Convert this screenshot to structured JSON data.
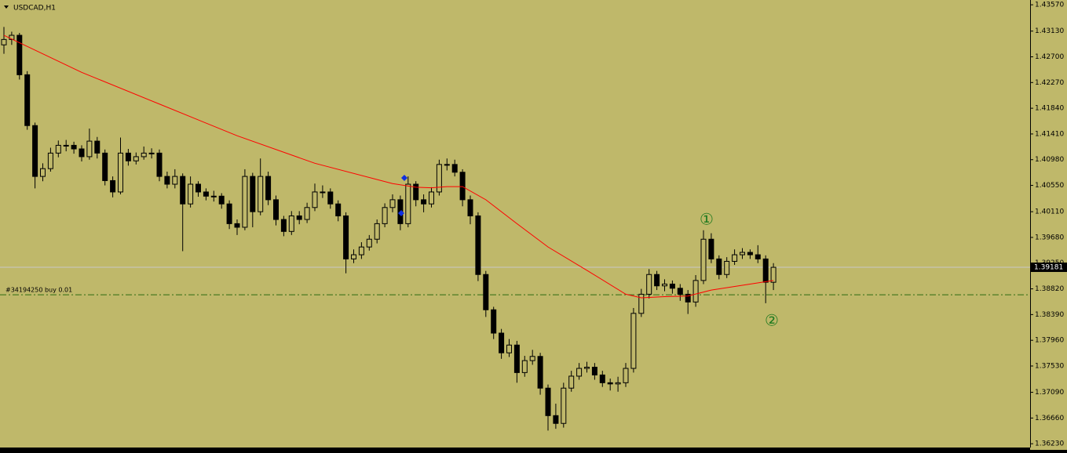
{
  "chart_data": {
    "type": "candlestick",
    "title": "USDCAD,H1",
    "ylim": [
      1.3618,
      1.4365
    ],
    "yticks": [
      {
        "value": 1.4357,
        "label": "1.43570"
      },
      {
        "value": 1.4313,
        "label": "1.43130"
      },
      {
        "value": 1.427,
        "label": "1.42700"
      },
      {
        "value": 1.4227,
        "label": "1.42270"
      },
      {
        "value": 1.4184,
        "label": "1.41840"
      },
      {
        "value": 1.4141,
        "label": "1.41410"
      },
      {
        "value": 1.4098,
        "label": "1.40980"
      },
      {
        "value": 1.4055,
        "label": "1.40550"
      },
      {
        "value": 1.4011,
        "label": "1.40110"
      },
      {
        "value": 1.3968,
        "label": "1.39680"
      },
      {
        "value": 1.3925,
        "label": "1.39250"
      },
      {
        "value": 1.3882,
        "label": "1.38820"
      },
      {
        "value": 1.3839,
        "label": "1.38390"
      },
      {
        "value": 1.3796,
        "label": "1.37960"
      },
      {
        "value": 1.3753,
        "label": "1.37530"
      },
      {
        "value": 1.3709,
        "label": "1.37090"
      },
      {
        "value": 1.3666,
        "label": "1.36660"
      },
      {
        "value": 1.3623,
        "label": "1.36230"
      }
    ],
    "open": [
      1.429,
      1.4299,
      1.4306,
      1.424,
      1.4155,
      1.407,
      1.4083,
      1.4109,
      1.4122,
      1.4122,
      1.4116,
      1.4103,
      1.4129,
      1.4109,
      1.4063,
      1.4044,
      1.4109,
      1.4096,
      1.4103,
      1.4109,
      1.4109,
      1.407,
      1.4057,
      1.407,
      1.4024,
      1.4057,
      1.4044,
      1.4037,
      1.4037,
      1.4024,
      1.3991,
      1.3985,
      1.407,
      1.4011,
      1.407,
      1.4031,
      1.3998,
      1.3978,
      1.4004,
      1.3998,
      1.4018,
      1.4044,
      1.4044,
      1.4024,
      1.4004,
      1.3932,
      1.3939,
      1.3952,
      1.3965,
      1.3991,
      1.4018,
      1.4031,
      1.3991,
      1.4057,
      1.4031,
      1.4024,
      1.4044,
      1.409,
      1.409,
      1.4077,
      1.4031,
      1.4004,
      1.3906,
      1.3847,
      1.3808,
      1.3775,
      1.3788,
      1.3742,
      1.3762,
      1.3769,
      1.3716,
      1.367,
      1.3657,
      1.3716,
      1.3736,
      1.3749,
      1.3751,
      1.3738,
      1.3725,
      1.3723,
      1.3725,
      1.3749,
      1.3841,
      1.3873,
      1.3906,
      1.3887,
      1.389,
      1.3883,
      1.3873,
      1.386,
      1.3896,
      1.3965,
      1.3932,
      1.3906,
      1.3928,
      1.3939,
      1.3943,
      1.3939,
      1.3932,
      1.3893
    ],
    "high": [
      1.432,
      1.4312,
      1.431,
      1.4246,
      1.416,
      1.4092,
      1.4118,
      1.413,
      1.4131,
      1.4128,
      1.4122,
      1.415,
      1.4136,
      1.4115,
      1.407,
      1.4135,
      1.4116,
      1.411,
      1.412,
      1.4117,
      1.4115,
      1.4078,
      1.4082,
      1.4075,
      1.407,
      1.4062,
      1.405,
      1.4046,
      1.4042,
      1.403,
      1.3998,
      1.4082,
      1.4076,
      1.41,
      1.4078,
      1.4038,
      1.4004,
      1.4012,
      1.4012,
      1.4026,
      1.4058,
      1.4055,
      1.405,
      1.403,
      1.401,
      1.3948,
      1.396,
      1.3972,
      1.3998,
      1.4025,
      1.404,
      1.4038,
      1.407,
      1.4062,
      1.404,
      1.4052,
      1.4098,
      1.41,
      1.4098,
      1.4082,
      1.4038,
      1.401,
      1.3912,
      1.3852,
      1.3815,
      1.3798,
      1.3795,
      1.377,
      1.378,
      1.3775,
      1.3722,
      1.369,
      1.3725,
      1.3745,
      1.3758,
      1.376,
      1.3758,
      1.3745,
      1.3732,
      1.3735,
      1.3758,
      1.385,
      1.3882,
      1.3915,
      1.3912,
      1.3898,
      1.3896,
      1.389,
      1.388,
      1.3905,
      1.398,
      1.3975,
      1.3938,
      1.3935,
      1.3948,
      1.395,
      1.3948,
      1.3955,
      1.3938,
      1.3925
    ],
    "low": [
      1.4275,
      1.429,
      1.4232,
      1.4148,
      1.405,
      1.4062,
      1.4078,
      1.4102,
      1.4112,
      1.4108,
      1.4095,
      1.4098,
      1.41,
      1.4055,
      1.4035,
      1.404,
      1.4088,
      1.409,
      1.4098,
      1.41,
      1.4062,
      1.405,
      1.405,
      1.3945,
      1.4018,
      1.4036,
      1.403,
      1.4028,
      1.4016,
      1.3982,
      1.3972,
      1.398,
      1.3985,
      1.4005,
      1.4022,
      1.3988,
      1.397,
      1.3972,
      1.399,
      1.3992,
      1.4012,
      1.4034,
      1.4016,
      1.3995,
      1.3908,
      1.3925,
      1.3932,
      1.3946,
      1.3958,
      1.3985,
      1.401,
      1.398,
      1.3985,
      1.402,
      1.401,
      1.4018,
      1.4038,
      1.408,
      1.407,
      1.402,
      1.399,
      1.3895,
      1.3835,
      1.3798,
      1.3765,
      1.3768,
      1.3725,
      1.3735,
      1.3755,
      1.3705,
      1.3645,
      1.3648,
      1.365,
      1.371,
      1.373,
      1.3742,
      1.373,
      1.3718,
      1.3712,
      1.371,
      1.3718,
      1.3742,
      1.3835,
      1.3866,
      1.388,
      1.3878,
      1.3874,
      1.3862,
      1.384,
      1.3852,
      1.389,
      1.3925,
      1.3898,
      1.39,
      1.3922,
      1.3932,
      1.3932,
      1.3925,
      1.3858,
      1.388
    ],
    "close": [
      1.4299,
      1.4306,
      1.424,
      1.4155,
      1.407,
      1.4083,
      1.4109,
      1.4122,
      1.4122,
      1.4116,
      1.4103,
      1.4129,
      1.4109,
      1.4063,
      1.4044,
      1.4109,
      1.4096,
      1.4103,
      1.4109,
      1.4109,
      1.407,
      1.4057,
      1.407,
      1.4024,
      1.4057,
      1.4044,
      1.4037,
      1.4037,
      1.4024,
      1.3991,
      1.3985,
      1.407,
      1.4011,
      1.407,
      1.4031,
      1.3998,
      1.3978,
      1.4004,
      1.3998,
      1.4018,
      1.4044,
      1.4044,
      1.4024,
      1.4004,
      1.3932,
      1.3939,
      1.3952,
      1.3965,
      1.3991,
      1.4018,
      1.4031,
      1.3991,
      1.4057,
      1.4031,
      1.4024,
      1.4044,
      1.409,
      1.409,
      1.4077,
      1.4031,
      1.4004,
      1.3906,
      1.3847,
      1.3808,
      1.3775,
      1.3788,
      1.3742,
      1.3762,
      1.3769,
      1.3716,
      1.367,
      1.3657,
      1.3716,
      1.3736,
      1.3749,
      1.3751,
      1.3738,
      1.3725,
      1.3723,
      1.3725,
      1.3749,
      1.3841,
      1.3873,
      1.3906,
      1.3887,
      1.389,
      1.3883,
      1.3873,
      1.386,
      1.3896,
      1.3965,
      1.3932,
      1.3906,
      1.3928,
      1.3939,
      1.3943,
      1.3939,
      1.3932,
      1.3893,
      1.3918
    ],
    "ma": {
      "color": "#ff0000",
      "x": [
        0,
        10,
        20,
        30,
        40,
        50,
        53,
        55,
        57,
        59,
        62,
        66,
        70,
        75,
        80,
        82,
        85,
        88,
        91,
        95,
        99
      ],
      "values": [
        1.4306,
        1.4244,
        1.4191,
        1.4138,
        1.4092,
        1.4058,
        1.4052,
        1.4051,
        1.4053,
        1.4053,
        1.4031,
        1.3991,
        1.3952,
        1.3913,
        1.3873,
        1.3867,
        1.3869,
        1.387,
        1.388,
        1.3888,
        1.3896
      ]
    },
    "current_price": 1.39181,
    "order": {
      "label": "#34194250 buy 0.01",
      "price": 1.3872
    },
    "annotations": [
      "①",
      "②"
    ]
  }
}
